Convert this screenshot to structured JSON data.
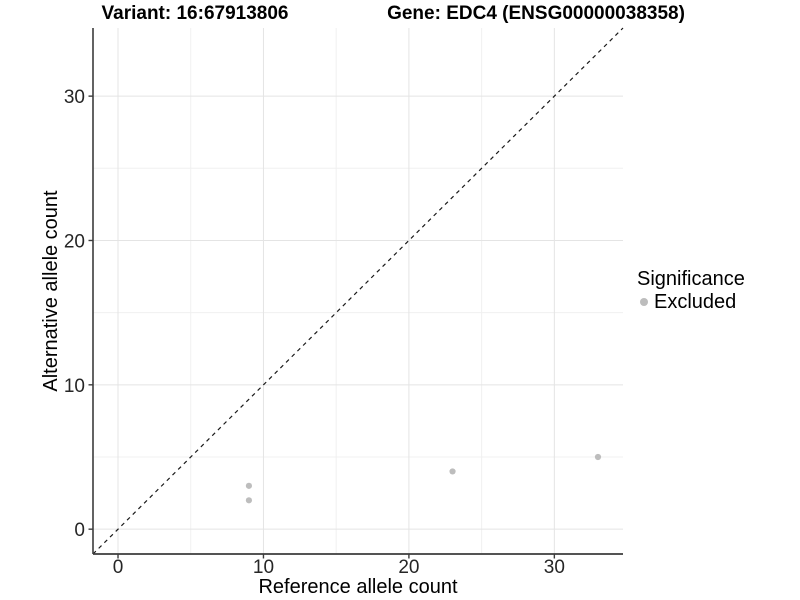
{
  "titles": {
    "variant": "Variant: 16:67913806",
    "gene": "Gene: EDC4 (ENSG00000038358)"
  },
  "chart_data": {
    "type": "scatter",
    "xlabel": "Reference allele count",
    "ylabel": "Alternative allele count",
    "xlim": [
      -1.72,
      34.72
    ],
    "ylim": [
      -1.72,
      34.72
    ],
    "x_ticks": [
      0,
      10,
      20,
      30
    ],
    "y_ticks": [
      0,
      10,
      20,
      30
    ],
    "x_minor_ticks": [
      5,
      15,
      25
    ],
    "y_minor_ticks": [
      5,
      15,
      25
    ],
    "grid": true,
    "legend_position": "right",
    "series": [
      {
        "name": "Excluded",
        "color": "#bdbdbd",
        "point_radius": 3.1,
        "points": [
          [
            9,
            2
          ],
          [
            9,
            3
          ],
          [
            23,
            4
          ],
          [
            33,
            5
          ]
        ]
      }
    ],
    "reference_line": {
      "type": "identity",
      "style": "dashed",
      "color": "#1a1a1a"
    },
    "legend": {
      "title": "Significance",
      "items": [
        {
          "label": "Excluded",
          "color": "#bdbdbd"
        }
      ]
    }
  },
  "colors": {
    "background": "#ffffff",
    "major_grid": "#e4e4e4",
    "minor_grid": "#f0f0f0",
    "axis_line": "#3c3c3c",
    "tick_text": "#262626",
    "point": "#bdbdbd"
  }
}
